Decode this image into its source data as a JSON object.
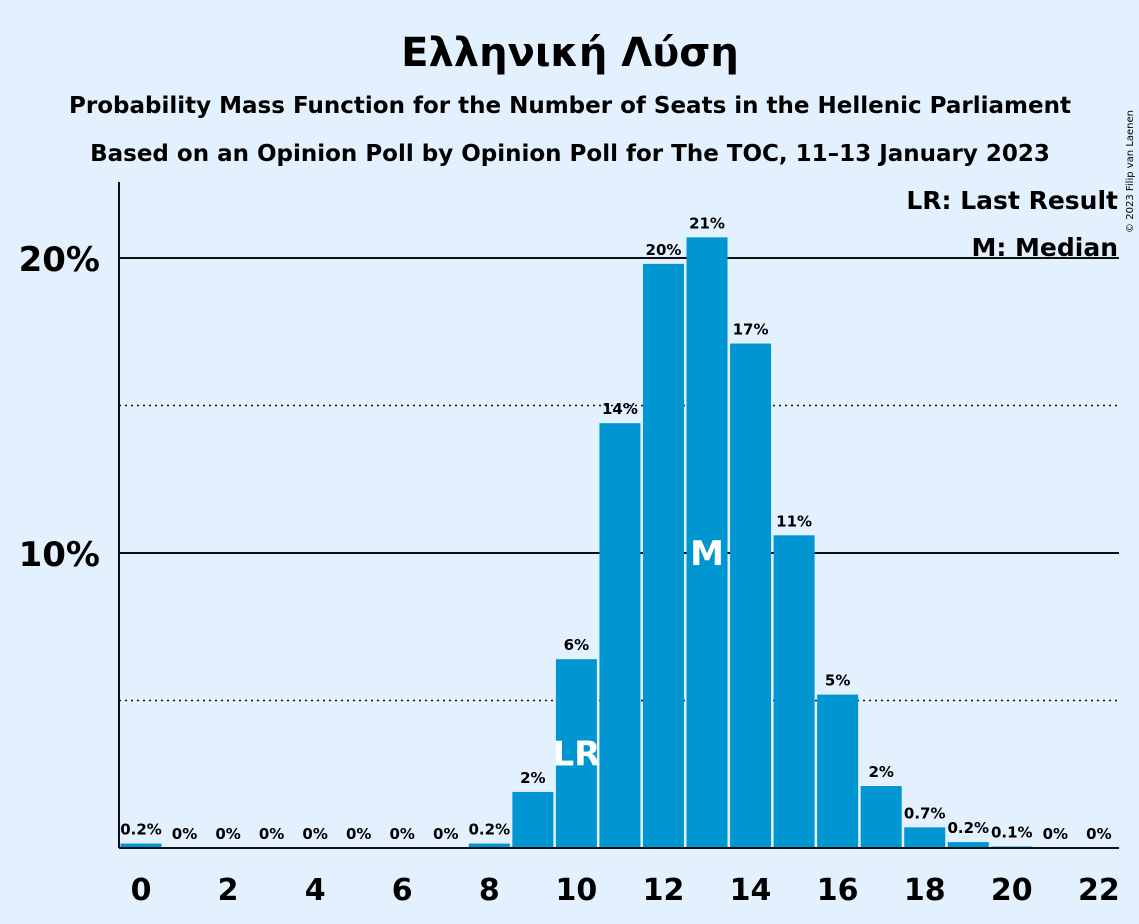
{
  "title": "Ελληνική Λύση",
  "subtitle1": "Probability Mass Function for the Number of Seats in the Hellenic Parliament",
  "subtitle2": "Based on an Opinion Poll by Opinion Poll for The TOC, 11–13 January 2023",
  "copyright": "© 2023 Filip van Laenen",
  "legend": {
    "last_result": "LR: Last Result",
    "median": "M: Median"
  },
  "colors": {
    "bar": "#0096d2",
    "background": "#e3f0fd"
  },
  "chart_data": {
    "type": "bar",
    "x": [
      0,
      1,
      2,
      3,
      4,
      5,
      6,
      7,
      8,
      9,
      10,
      11,
      12,
      13,
      14,
      15,
      16,
      17,
      18,
      19,
      20,
      21,
      22
    ],
    "values": [
      0.2,
      0,
      0,
      0,
      0,
      0,
      0,
      0,
      0.2,
      2,
      6,
      14,
      20,
      21,
      17,
      11,
      5,
      2,
      0.7,
      0.2,
      0.1,
      0,
      0
    ],
    "bar_heights": [
      0.15,
      0,
      0,
      0,
      0,
      0,
      0,
      0,
      0.15,
      1.9,
      6.4,
      14.4,
      19.8,
      20.7,
      17.1,
      10.6,
      5.2,
      2.1,
      0.7,
      0.2,
      0.05,
      0,
      0
    ],
    "data_labels": [
      "0.2%",
      "0%",
      "0%",
      "0%",
      "0%",
      "0%",
      "0%",
      "0%",
      "0.2%",
      "2%",
      "6%",
      "14%",
      "20%",
      "21%",
      "17%",
      "11%",
      "5%",
      "2%",
      "0.7%",
      "0.2%",
      "0.1%",
      "0%",
      "0%"
    ],
    "x_tick_labels": [
      "0",
      "2",
      "4",
      "6",
      "8",
      "10",
      "12",
      "14",
      "16",
      "18",
      "20",
      "22"
    ],
    "x_tick_values": [
      0,
      2,
      4,
      6,
      8,
      10,
      12,
      14,
      16,
      18,
      20,
      22
    ],
    "y_tick_labels": [
      "10%",
      "20%"
    ],
    "y_tick_values": [
      10,
      20
    ],
    "ylim": [
      0,
      22.5
    ],
    "last_result_seat": 10,
    "median_seat": 13,
    "last_result_marker": "LR",
    "median_marker": "M",
    "grid": "solid major, dotted minor",
    "legend_position": "top-right"
  }
}
